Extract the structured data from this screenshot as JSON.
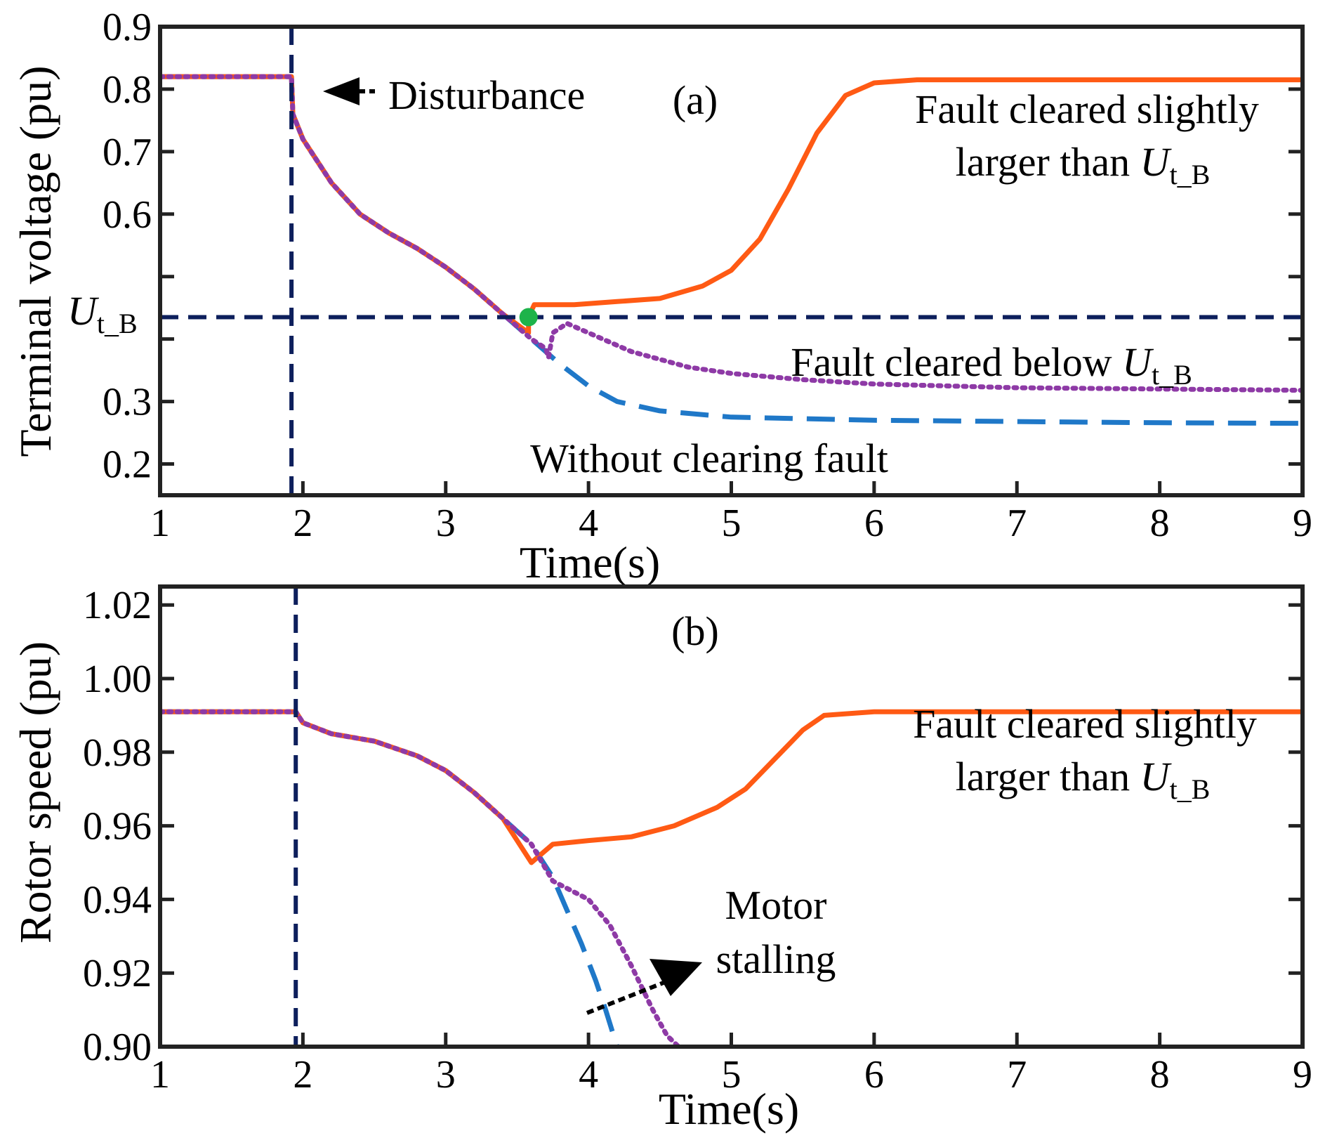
{
  "chart_data": [
    {
      "id": "a",
      "type": "line",
      "panel_label": "(a)",
      "xlabel": "Time(s)",
      "ylabel": "Terminal voltage (pu)",
      "xlim": [
        1,
        9
      ],
      "ylim": [
        0.15,
        0.9
      ],
      "xticks": [
        1,
        2,
        3,
        4,
        5,
        6,
        7,
        8,
        9
      ],
      "xtick_labels": [
        "1",
        "2",
        "3",
        "4",
        "5",
        "6",
        "7",
        "8",
        "9"
      ],
      "yticks": [
        0.2,
        0.3,
        0.6,
        0.7,
        0.8,
        0.9
      ],
      "ytick_labels": [
        "0.2",
        "0.3",
        "0.6",
        "0.7",
        "0.8",
        "0.9"
      ],
      "ytick_marks_only": [
        0.5,
        0.4
      ],
      "threshold": {
        "value": 0.435,
        "label_main": "U",
        "label_sub": "t_B",
        "color": "#0d1f5c"
      },
      "disturbance_time": 1.92,
      "clearing_point": {
        "x": 3.58,
        "y": 0.435,
        "color": "#1db34a"
      },
      "series": [
        {
          "name": "Fault cleared slightly larger than U_t_B",
          "color": "#ff5a14",
          "style": "solid",
          "x": [
            1,
            1.92,
            1.93,
            2.0,
            2.2,
            2.4,
            2.6,
            2.8,
            3.0,
            3.2,
            3.4,
            3.58,
            3.58,
            3.62,
            3.7,
            3.9,
            4.2,
            4.5,
            4.8,
            5.0,
            5.2,
            5.4,
            5.6,
            5.8,
            6.0,
            6.3,
            7.0,
            8.0,
            9.0
          ],
          "y": [
            0.82,
            0.82,
            0.76,
            0.72,
            0.65,
            0.6,
            0.57,
            0.545,
            0.515,
            0.48,
            0.44,
            0.41,
            0.435,
            0.455,
            0.455,
            0.455,
            0.46,
            0.465,
            0.485,
            0.51,
            0.56,
            0.64,
            0.73,
            0.79,
            0.81,
            0.815,
            0.815,
            0.815,
            0.815
          ]
        },
        {
          "name": "Fault cleared below U_t_B",
          "color": "#8e3aa6",
          "style": "dotted",
          "x": [
            1,
            1.92,
            1.93,
            2.0,
            2.2,
            2.4,
            2.6,
            2.8,
            3.0,
            3.2,
            3.4,
            3.6,
            3.7,
            3.72,
            3.75,
            3.85,
            4.0,
            4.3,
            4.7,
            5.0,
            5.5,
            6.0,
            7.0,
            8.0,
            9.0
          ],
          "y": [
            0.82,
            0.82,
            0.76,
            0.72,
            0.65,
            0.6,
            0.57,
            0.545,
            0.515,
            0.48,
            0.44,
            0.4,
            0.385,
            0.37,
            0.41,
            0.425,
            0.41,
            0.38,
            0.355,
            0.345,
            0.335,
            0.328,
            0.322,
            0.32,
            0.318
          ]
        },
        {
          "name": "Without clearing fault",
          "color": "#1f78c8",
          "style": "dashed",
          "x": [
            1,
            1.92,
            1.93,
            2.0,
            2.2,
            2.4,
            2.6,
            2.8,
            3.0,
            3.2,
            3.4,
            3.6,
            3.8,
            4.0,
            4.2,
            4.5,
            5.0,
            6.0,
            7.0,
            8.0,
            9.0
          ],
          "y": [
            0.82,
            0.82,
            0.76,
            0.72,
            0.65,
            0.6,
            0.57,
            0.545,
            0.515,
            0.48,
            0.44,
            0.4,
            0.36,
            0.325,
            0.3,
            0.285,
            0.275,
            0.27,
            0.268,
            0.266,
            0.265
          ]
        }
      ],
      "annotations": [
        {
          "key": "disturbance",
          "text": "Disturbance"
        },
        {
          "key": "slightly_l1",
          "text": "Fault cleared slightly"
        },
        {
          "key": "slightly_l2",
          "text": "larger than",
          "main": "U",
          "sub": "t_B"
        },
        {
          "key": "below",
          "text": "Fault cleared below",
          "main": "U",
          "sub": "t_B"
        },
        {
          "key": "without",
          "text": "Without clearing fault"
        }
      ]
    },
    {
      "id": "b",
      "type": "line",
      "panel_label": "(b)",
      "xlabel": "Time(s)",
      "ylabel": "Rotor speed (pu)",
      "xlim": [
        1,
        9
      ],
      "ylim": [
        0.9,
        1.025
      ],
      "xticks": [
        1,
        2,
        3,
        4,
        5,
        6,
        7,
        8,
        9
      ],
      "xtick_labels": [
        "1",
        "2",
        "3",
        "4",
        "5",
        "6",
        "7",
        "8",
        "9"
      ],
      "yticks": [
        0.9,
        0.92,
        0.94,
        0.96,
        0.98,
        1.0,
        1.02
      ],
      "ytick_labels": [
        "0.90",
        "0.92",
        "0.94",
        "0.96",
        "0.98",
        "1.00",
        "1.02"
      ],
      "disturbance_time": 1.95,
      "series": [
        {
          "name": "Fault cleared slightly larger than U_t_B",
          "color": "#ff5a14",
          "style": "solid",
          "x": [
            1,
            1.95,
            2.0,
            2.2,
            2.5,
            2.8,
            3.0,
            3.2,
            3.4,
            3.6,
            3.75,
            4.0,
            4.3,
            4.6,
            4.9,
            5.1,
            5.3,
            5.5,
            5.65,
            6.0,
            7.0,
            8.0,
            9.0
          ],
          "y": [
            0.991,
            0.991,
            0.988,
            0.985,
            0.983,
            0.979,
            0.975,
            0.969,
            0.962,
            0.95,
            0.955,
            0.956,
            0.957,
            0.96,
            0.965,
            0.97,
            0.978,
            0.986,
            0.99,
            0.991,
            0.991,
            0.991,
            0.991
          ]
        },
        {
          "name": "Fault cleared below U_t_B",
          "color": "#8e3aa6",
          "style": "dotted",
          "x": [
            1,
            1.95,
            2.0,
            2.2,
            2.5,
            2.8,
            3.0,
            3.2,
            3.4,
            3.6,
            3.75,
            3.85,
            4.0,
            4.15,
            4.3,
            4.45,
            4.55,
            4.63
          ],
          "y": [
            0.991,
            0.991,
            0.988,
            0.985,
            0.983,
            0.979,
            0.975,
            0.969,
            0.962,
            0.955,
            0.945,
            0.943,
            0.94,
            0.933,
            0.922,
            0.91,
            0.903,
            0.9
          ]
        },
        {
          "name": "Without clearing fault",
          "color": "#1f78c8",
          "style": "dashed",
          "x": [
            1,
            1.95,
            2.0,
            2.2,
            2.5,
            2.8,
            3.0,
            3.2,
            3.4,
            3.6,
            3.75,
            3.85,
            3.95,
            4.05,
            4.12,
            4.2
          ],
          "y": [
            0.991,
            0.991,
            0.988,
            0.985,
            0.983,
            0.979,
            0.975,
            0.969,
            0.962,
            0.955,
            0.946,
            0.937,
            0.928,
            0.918,
            0.91,
            0.9
          ]
        }
      ],
      "annotations": [
        {
          "key": "slightly_l1",
          "text": "Fault cleared slightly"
        },
        {
          "key": "slightly_l2",
          "text": "larger than",
          "main": "U",
          "sub": "t_B"
        },
        {
          "key": "motor_l1",
          "text": "Motor"
        },
        {
          "key": "motor_l2",
          "text": "stalling"
        }
      ]
    }
  ]
}
